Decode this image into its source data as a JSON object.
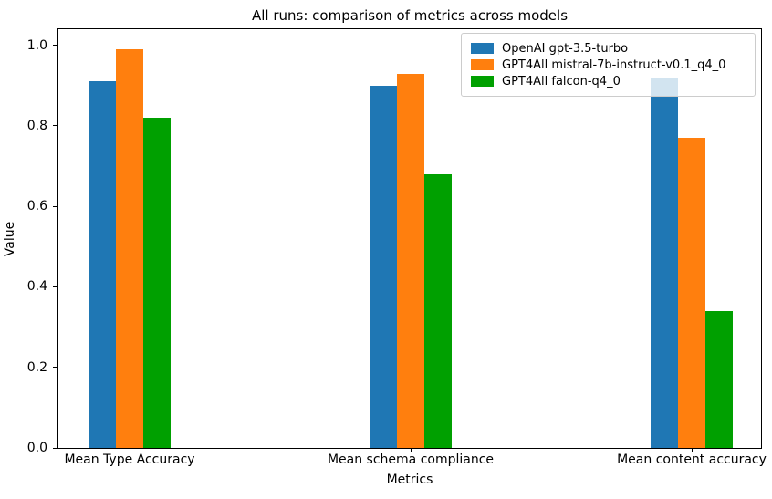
{
  "chart_data": {
    "type": "bar",
    "title": "All runs: comparison of metrics across models",
    "xlabel": "Metrics",
    "ylabel": "Value",
    "categories": [
      "Mean Type Accuracy",
      "Mean schema compliance",
      "Mean content accuracy"
    ],
    "series": [
      {
        "name": "OpenAI gpt-3.5-turbo",
        "color": "#1f77b4",
        "values": [
          0.91,
          0.9,
          0.92
        ]
      },
      {
        "name": "GPT4All mistral-7b-instruct-v0.1_q4_0",
        "color": "#ff7f0e",
        "values": [
          0.99,
          0.93,
          0.77
        ]
      },
      {
        "name": "GPT4All falcon-q4_0",
        "color": "#00a000",
        "values": [
          0.82,
          0.68,
          0.34
        ]
      }
    ],
    "ylim": [
      0,
      1.04
    ],
    "yticks": [
      0.0,
      0.2,
      0.4,
      0.6,
      0.8,
      1.0
    ],
    "grid": false,
    "legend_position": "upper right",
    "background": "#ffffff",
    "spine_color": "#000000"
  }
}
